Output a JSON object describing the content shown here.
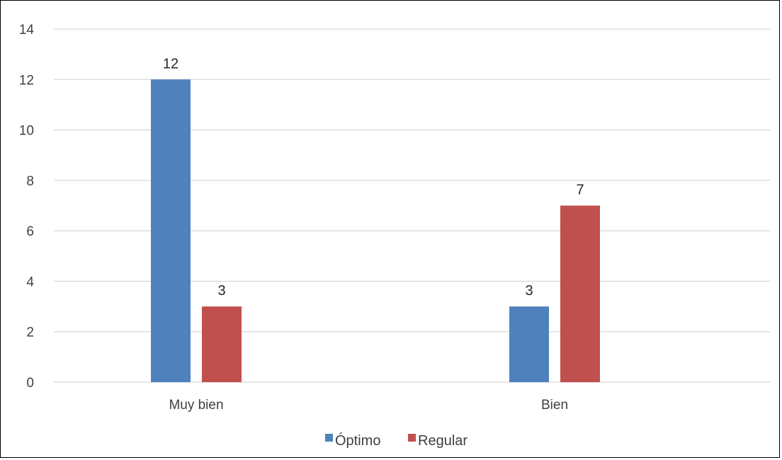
{
  "chart_data": {
    "type": "bar",
    "categories": [
      "Muy bien",
      "Bien"
    ],
    "series": [
      {
        "name": "Óptimo",
        "values": [
          12,
          3
        ],
        "color": "#4F81BD"
      },
      {
        "name": "Regular",
        "values": [
          3,
          7
        ],
        "color": "#C0504D"
      }
    ],
    "ylim": [
      0,
      14
    ],
    "yticks": [
      0,
      2,
      4,
      6,
      8,
      10,
      12,
      14
    ],
    "grid": true,
    "legend_position": "bottom",
    "data_labels": true
  },
  "colors": {
    "gridline": "#D9D9D9",
    "axis_text": "#404040"
  }
}
